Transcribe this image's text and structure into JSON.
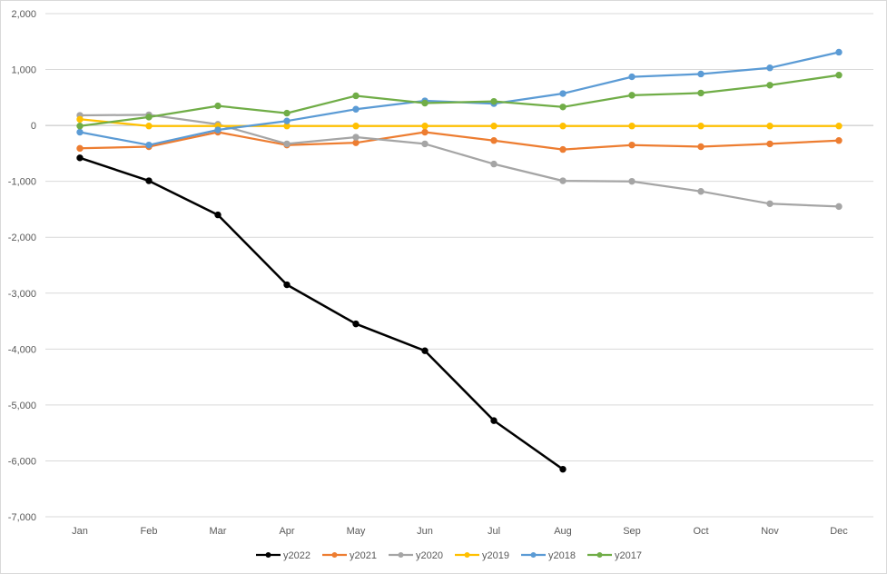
{
  "chart_data": {
    "type": "line",
    "title": "",
    "xlabel": "",
    "ylabel": "",
    "categories": [
      "Jan",
      "Feb",
      "Mar",
      "Apr",
      "May",
      "Jun",
      "Jul",
      "Aug",
      "Sep",
      "Oct",
      "Nov",
      "Dec"
    ],
    "ylim": [
      -7000,
      2000
    ],
    "yticks": [
      2000,
      1000,
      0,
      -1000,
      -2000,
      -3000,
      -4000,
      -5000,
      -6000,
      -7000
    ],
    "ytick_labels": [
      "2,000",
      "1,000",
      "0",
      "-1,000",
      "-2,000",
      "-3,000",
      "-4,000",
      "-5,000",
      "-6,000",
      "-7,000"
    ],
    "grid": "horizontal",
    "legend_position": "bottom",
    "series": [
      {
        "name": "y2022",
        "color": "#000000",
        "values": [
          -580,
          -990,
          -1600,
          -2850,
          -3550,
          -4030,
          -5280,
          -6150,
          null,
          null,
          null,
          null
        ]
      },
      {
        "name": "y2021",
        "color": "#ed7d31",
        "values": [
          -410,
          -380,
          -120,
          -350,
          -310,
          -120,
          -270,
          -430,
          -350,
          -380,
          -330,
          -270
        ]
      },
      {
        "name": "y2020",
        "color": "#a5a5a5",
        "values": [
          180,
          190,
          20,
          -330,
          -210,
          -330,
          -690,
          -990,
          -1000,
          -1180,
          -1400,
          -1450
        ]
      },
      {
        "name": "y2019",
        "color": "#ffc000",
        "values": [
          110,
          -10,
          -10,
          -10,
          -10,
          -10,
          -10,
          -10,
          -10,
          -10,
          -10,
          -10
        ]
      },
      {
        "name": "y2018",
        "color": "#5b9bd5",
        "values": [
          -120,
          -350,
          -80,
          80,
          290,
          440,
          390,
          570,
          870,
          920,
          1030,
          1310
        ]
      },
      {
        "name": "y2017",
        "color": "#70ad47",
        "values": [
          -10,
          150,
          350,
          220,
          530,
          400,
          430,
          330,
          540,
          580,
          720,
          900
        ]
      }
    ]
  }
}
